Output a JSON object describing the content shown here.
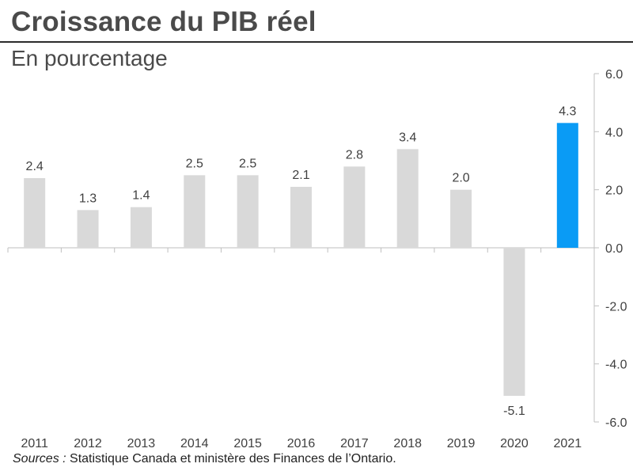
{
  "header": {
    "title": "Croissance du PIB réel",
    "subtitle": "En pourcentage"
  },
  "footer": {
    "source_label": "Sources :",
    "source_text": " Statistique Canada et ministère des Finances de l’Ontario."
  },
  "colors": {
    "bar_default": "#d9d9d9",
    "bar_highlight": "#0a9bf5",
    "axis": "#bfbfbf",
    "label": "#404040"
  },
  "chart_data": {
    "type": "bar",
    "categories": [
      "2011",
      "2012",
      "2013",
      "2014",
      "2015",
      "2016",
      "2017",
      "2018",
      "2019",
      "2020",
      "2021"
    ],
    "values": [
      2.4,
      1.3,
      1.4,
      2.5,
      2.5,
      2.1,
      2.8,
      3.4,
      2.0,
      -5.1,
      4.3
    ],
    "data_labels": [
      "2.4",
      "1.3",
      "1.4",
      "2.5",
      "2.5",
      "2.1",
      "2.8",
      "3.4",
      "2.0",
      "-5.1",
      "4.3"
    ],
    "highlight_index": 10,
    "ylim": [
      -6.0,
      6.0
    ],
    "yticks": [
      6.0,
      4.0,
      2.0,
      0.0,
      -2.0,
      -4.0,
      -6.0
    ],
    "ytick_labels": [
      "6.0",
      "4.0",
      "2.0",
      "0.0",
      "-2.0",
      "-4.0",
      "-6.0"
    ],
    "yaxis_side": "right",
    "grid": false,
    "legend": "none",
    "title": "Croissance du PIB réel",
    "xlabel": "",
    "ylabel": ""
  }
}
